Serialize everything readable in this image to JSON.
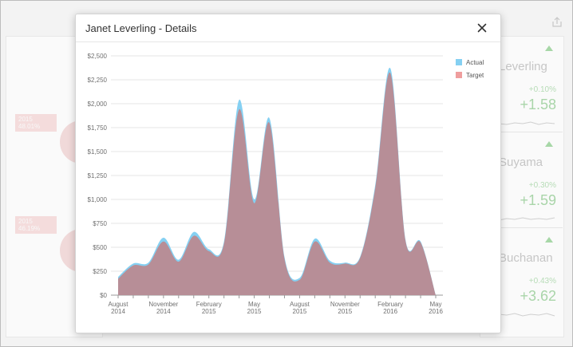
{
  "dialog": {
    "title": "Janet Leverling - Details",
    "close_icon": "close-icon"
  },
  "background": {
    "export_icon": "export-icon",
    "pie_labels": [
      {
        "year": "2015",
        "pct": "48.01%"
      },
      {
        "year": "2015",
        "pct": "46.19%"
      }
    ],
    "employees": [
      {
        "name": "Leverling",
        "pct": "+0.10%",
        "delta": "+1.58"
      },
      {
        "name": "Suyama",
        "pct": "+0.30%",
        "delta": "+1.59"
      },
      {
        "name": "Buchanan",
        "pct": "+0.43%",
        "delta": "+3.62"
      }
    ]
  },
  "colors": {
    "actual": "#85d0f2",
    "target": "#ef9e9e",
    "overlap": "#b88d95",
    "grid": "#e4e4e4",
    "axis_text": "#707070"
  },
  "chart_data": {
    "type": "area",
    "title": "",
    "xlabel": "",
    "ylabel": "",
    "ylim": [
      0,
      2500
    ],
    "ytick_labels": [
      "$0",
      "$250",
      "$500",
      "$750",
      "$1,000",
      "$1,250",
      "$1,500",
      "$1,750",
      "$2,000",
      "$2,250",
      "$2,500"
    ],
    "ytick_values": [
      0,
      250,
      500,
      750,
      1000,
      1250,
      1500,
      1750,
      2000,
      2250,
      2500
    ],
    "xtick_labels": [
      [
        "August",
        "2014"
      ],
      [
        "November",
        "2014"
      ],
      [
        "February",
        "2015"
      ],
      [
        "May",
        "2015"
      ],
      [
        "August",
        "2015"
      ],
      [
        "November",
        "2015"
      ],
      [
        "February",
        "2016"
      ],
      [
        "May",
        "2016"
      ]
    ],
    "x": [
      "2014-08",
      "2014-09",
      "2014-10",
      "2014-11",
      "2014-12",
      "2015-01",
      "2015-02",
      "2015-03",
      "2015-04",
      "2015-05",
      "2015-06",
      "2015-07",
      "2015-08",
      "2015-09",
      "2015-10",
      "2015-11",
      "2015-12",
      "2016-01",
      "2016-02",
      "2016-03",
      "2016-04",
      "2016-05"
    ],
    "series": [
      {
        "name": "Actual",
        "values": [
          190,
          330,
          340,
          600,
          370,
          660,
          480,
          560,
          2040,
          1000,
          1850,
          400,
          180,
          590,
          360,
          340,
          400,
          1150,
          2370,
          580,
          560,
          0
        ]
      },
      {
        "name": "Target",
        "values": [
          170,
          310,
          320,
          560,
          350,
          620,
          460,
          540,
          1940,
          960,
          1800,
          380,
          160,
          560,
          340,
          330,
          390,
          1120,
          2320,
          570,
          550,
          0
        ]
      }
    ],
    "legend": [
      "Actual",
      "Target"
    ],
    "legend_position": "top-right",
    "grid": true
  }
}
